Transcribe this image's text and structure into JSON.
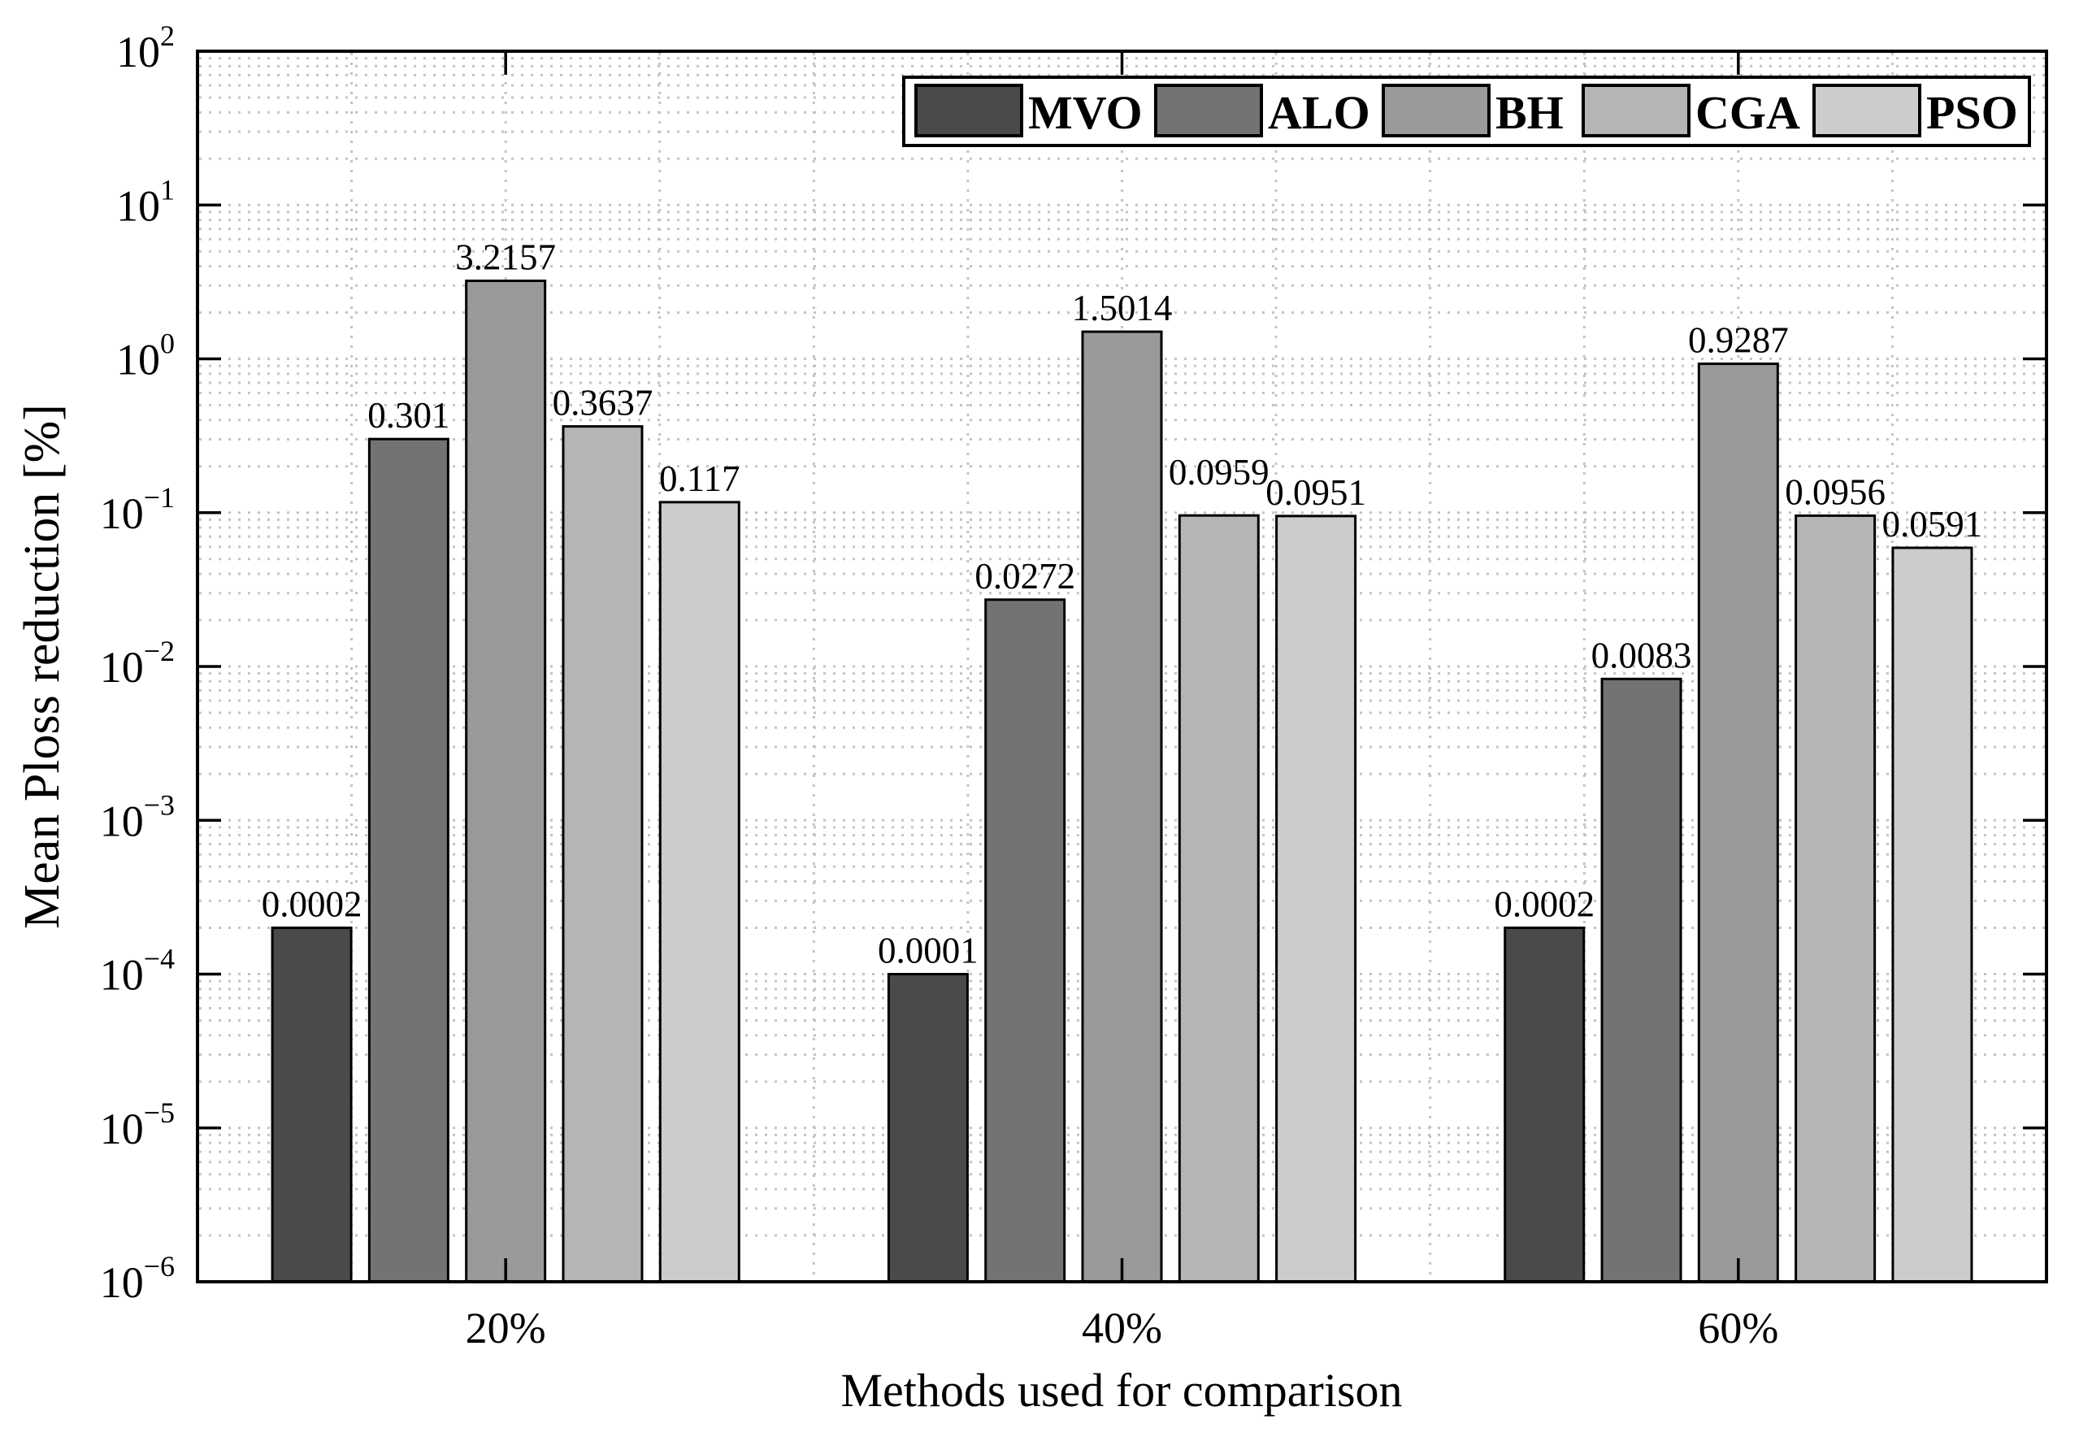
{
  "figure": {
    "background": "#ffffff",
    "axes_color": "#000000",
    "grid_color": "#c3c3c3",
    "legend_border_color": "#000000",
    "legend_background": "#ffffff"
  },
  "chart_data": {
    "type": "bar",
    "title": "",
    "xlabel": "Methods used for comparison",
    "ylabel": "Mean Ploss reduction [%]",
    "yscale": "log",
    "ylim": [
      1e-06,
      100
    ],
    "ytick_exponents": [
      2,
      1,
      0,
      -1,
      -2,
      -3,
      -4,
      -5,
      -6
    ],
    "grid": true,
    "legend_position": "top-center-inside",
    "legend_orientation": "horizontal",
    "categories": [
      "20%",
      "40%",
      "60%"
    ],
    "series": [
      {
        "name": "MVO",
        "color": "#4a4a4a",
        "values": [
          0.0002,
          0.0001,
          0.0002
        ],
        "value_labels": [
          "0.0002",
          "0.0001",
          "0.0002"
        ]
      },
      {
        "name": "ALO",
        "color": "#737373",
        "values": [
          0.301,
          0.0272,
          0.0083
        ],
        "value_labels": [
          "0.301",
          "0.0272",
          "0.0083"
        ]
      },
      {
        "name": "BH",
        "color": "#9a9a9a",
        "values": [
          3.2157,
          1.5014,
          0.9287
        ],
        "value_labels": [
          "3.2157",
          "1.5014",
          "0.9287"
        ]
      },
      {
        "name": "CGA",
        "color": "#b5b5b5",
        "values": [
          0.3637,
          0.0959,
          0.0956
        ],
        "value_labels": [
          "0.3637",
          "0.0959",
          "0.0956"
        ]
      },
      {
        "name": "PSO",
        "color": "#cccccc",
        "values": [
          0.117,
          0.0951,
          0.0591
        ],
        "value_labels": [
          "0.117",
          "0.0951",
          "0.0591"
        ]
      }
    ]
  }
}
